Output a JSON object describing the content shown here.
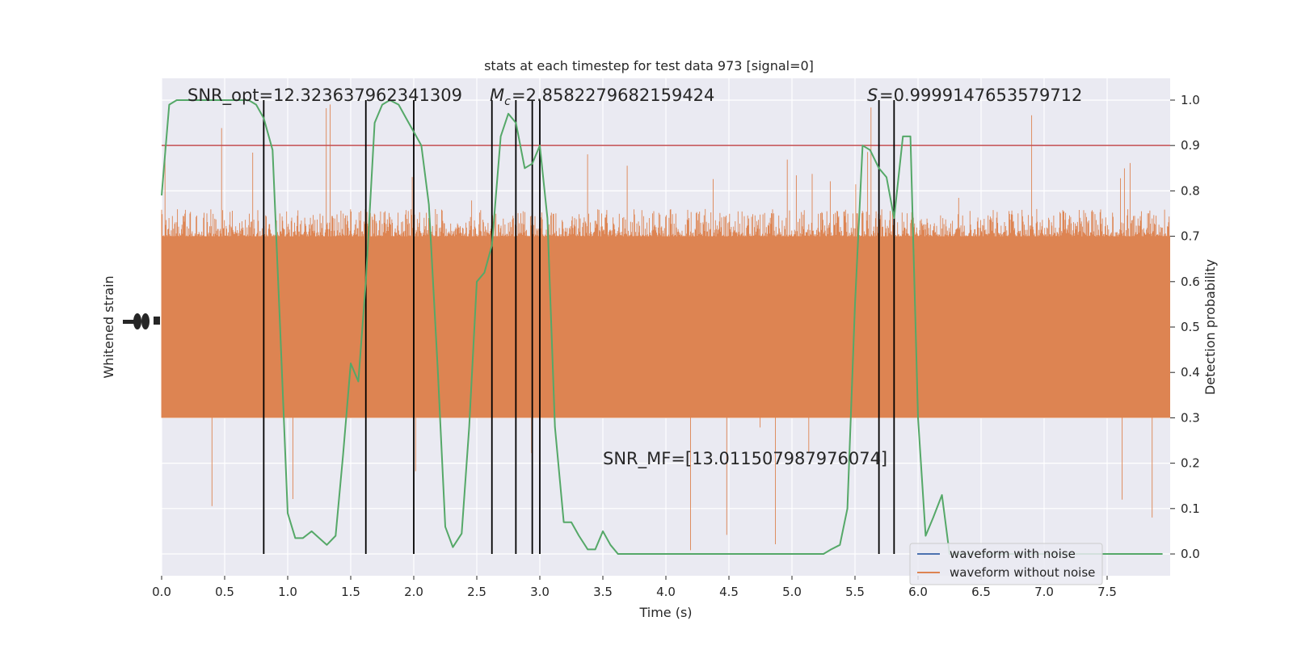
{
  "chart_data": {
    "type": "line",
    "title": "stats at each timestep for test data 973 [signal=0]",
    "xlabel": "Time (s)",
    "ylabel_left": "Whitened strain",
    "ylabel_right": "Detection probability",
    "xlim": [
      0,
      8.0
    ],
    "ylim_right": [
      -0.048,
      1.048
    ],
    "x_ticks": [
      0.0,
      0.5,
      1.0,
      1.5,
      2.0,
      2.5,
      3.0,
      3.5,
      4.0,
      4.5,
      5.0,
      5.5,
      6.0,
      6.5,
      7.0,
      7.5
    ],
    "x_tick_labels": [
      "0.0",
      "0.5",
      "1.0",
      "1.5",
      "2.0",
      "2.5",
      "3.0",
      "3.5",
      "4.0",
      "4.5",
      "5.0",
      "5.5",
      "6.0",
      "6.5",
      "7.0",
      "7.5"
    ],
    "y_right_ticks": [
      0.0,
      0.1,
      0.2,
      0.3,
      0.4,
      0.5,
      0.6,
      0.7,
      0.8,
      0.9,
      1.0
    ],
    "y_right_tick_labels": [
      "0.0",
      "0.1",
      "0.2",
      "0.3",
      "0.4",
      "0.5",
      "0.6",
      "0.7",
      "0.8",
      "0.9",
      "1.0"
    ],
    "grid": true,
    "legend_position": "bottom-right",
    "threshold": 0.9,
    "annotations": {
      "snr_opt": "SNR_opt=12.323637962341309",
      "mc": "=2.8582279682159424",
      "s": "=0.9999147653579712",
      "snr_mf": "SNR_MF=[13.011507987976074]"
    },
    "detection_times": [
      0.81,
      1.62,
      2.0,
      2.62,
      2.81,
      2.94,
      3.0,
      5.69,
      5.81
    ],
    "series": [
      {
        "name": "waveform with noise",
        "color": "#4c72b0"
      },
      {
        "name": "waveform without noise",
        "color": "#dd8452",
        "envelope_upper": 0.76,
        "envelope_lower": 0.3,
        "dense_band": [
          0.3,
          0.7
        ],
        "peak_max": 1.0,
        "trough_min": 0.0
      },
      {
        "name": "detection probability",
        "color": "#55a868",
        "x": [
          0.0,
          0.06,
          0.12,
          0.19,
          0.25,
          0.31,
          0.38,
          0.44,
          0.5,
          0.56,
          0.62,
          0.69,
          0.75,
          0.81,
          0.88,
          0.94,
          1.0,
          1.06,
          1.12,
          1.19,
          1.25,
          1.31,
          1.38,
          1.44,
          1.5,
          1.56,
          1.62,
          1.69,
          1.75,
          1.81,
          1.88,
          1.94,
          2.0,
          2.06,
          2.12,
          2.19,
          2.25,
          2.31,
          2.38,
          2.44,
          2.5,
          2.56,
          2.62,
          2.69,
          2.75,
          2.81,
          2.88,
          2.94,
          3.0,
          3.06,
          3.12,
          3.19,
          3.25,
          3.31,
          3.38,
          3.44,
          3.5,
          3.56,
          3.62,
          3.69,
          3.75,
          3.81,
          3.88,
          3.94,
          4.0,
          4.25,
          4.5,
          4.75,
          5.0,
          5.12,
          5.25,
          5.31,
          5.38,
          5.44,
          5.5,
          5.56,
          5.62,
          5.69,
          5.75,
          5.81,
          5.88,
          5.94,
          6.0,
          6.06,
          6.12,
          6.19,
          6.25,
          7.0,
          7.5,
          7.75,
          7.94
        ],
        "y": [
          0.79,
          0.99,
          1.0,
          1.0,
          1.0,
          1.0,
          1.0,
          1.0,
          1.0,
          1.0,
          1.0,
          1.0,
          0.99,
          0.96,
          0.89,
          0.5,
          0.09,
          0.035,
          0.035,
          0.05,
          0.035,
          0.02,
          0.04,
          0.22,
          0.42,
          0.38,
          0.6,
          0.95,
          0.99,
          1.0,
          0.99,
          0.96,
          0.93,
          0.9,
          0.77,
          0.41,
          0.06,
          0.015,
          0.045,
          0.28,
          0.6,
          0.62,
          0.68,
          0.92,
          0.97,
          0.95,
          0.85,
          0.86,
          0.9,
          0.74,
          0.28,
          0.07,
          0.07,
          0.04,
          0.01,
          0.01,
          0.05,
          0.02,
          0.0,
          0.0,
          0.0,
          0.0,
          0.0,
          0.0,
          0.0,
          0.0,
          0.0,
          0.0,
          0.0,
          0.0,
          0.0,
          0.01,
          0.02,
          0.1,
          0.55,
          0.9,
          0.89,
          0.85,
          0.83,
          0.74,
          0.92,
          0.92,
          0.3,
          0.04,
          0.08,
          0.13,
          0.0,
          0.0,
          0.0,
          0.0,
          0.0
        ]
      }
    ]
  }
}
